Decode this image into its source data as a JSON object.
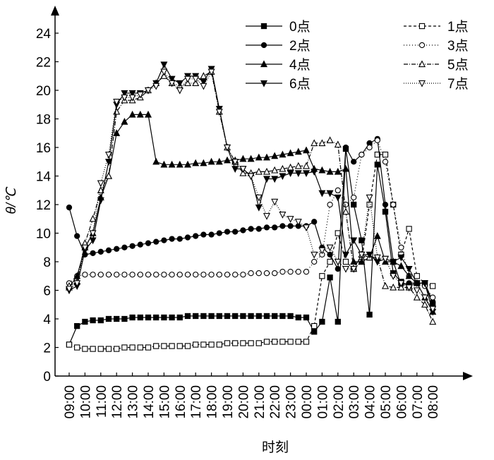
{
  "chart_data": {
    "type": "line",
    "y_label": "θ/℃",
    "x_label": "时刻",
    "categories": [
      "09:00",
      null,
      "10:00",
      null,
      "11:00",
      null,
      "12:00",
      null,
      "13:00",
      null,
      "14:00",
      null,
      "15:00",
      null,
      "16:00",
      null,
      "17:00",
      null,
      "18:00",
      null,
      "19:00",
      null,
      "20:00",
      null,
      "21:00",
      null,
      "22:00",
      null,
      "23:00",
      null,
      "00:00",
      null,
      "01:00",
      null,
      "02:00",
      null,
      "03:00",
      null,
      "04:00",
      null,
      "05:00",
      null,
      "06:00",
      null,
      "07:00",
      null,
      "08:00"
    ],
    "ylim": [
      0,
      24
    ],
    "yticks": [
      0,
      2,
      4,
      6,
      8,
      10,
      12,
      14,
      16,
      18,
      20,
      22,
      24
    ],
    "series": [
      {
        "name": "0点",
        "color": "#000000",
        "marker": "square",
        "filled": true,
        "dash": "none",
        "values": [
          2.2,
          3.5,
          3.8,
          3.9,
          3.9,
          4.0,
          4.0,
          4.0,
          4.1,
          4.1,
          4.1,
          4.1,
          4.1,
          4.1,
          4.1,
          4.2,
          4.2,
          4.2,
          4.2,
          4.2,
          4.2,
          4.2,
          4.2,
          4.2,
          4.2,
          4.2,
          4.2,
          4.2,
          4.2,
          4.1,
          4.1,
          3.1,
          3.8,
          6.9,
          3.8,
          15.9,
          12,
          9.5,
          4.3,
          14.8,
          11.5,
          7.2,
          6.6,
          6.3,
          6.5,
          6.5,
          5.0
        ]
      },
      {
        "name": "1点",
        "color": "#000000",
        "marker": "square",
        "filled": false,
        "dash": "4 3",
        "values": [
          2.2,
          2.0,
          1.9,
          1.9,
          1.9,
          1.9,
          1.9,
          2.0,
          2.0,
          2.0,
          2.0,
          2.1,
          2.1,
          2.1,
          2.1,
          2.1,
          2.2,
          2.2,
          2.2,
          2.2,
          2.3,
          2.3,
          2.3,
          2.3,
          2.3,
          2.4,
          2.4,
          2.4,
          2.4,
          2.4,
          2.4,
          3.5,
          7.0,
          8.0,
          10.0,
          8.0,
          7.5,
          8.0,
          12.0,
          15.5,
          15.5,
          12.0,
          8.5,
          10.3,
          7.0,
          6.5,
          6.3
        ]
      },
      {
        "name": "2点",
        "color": "#000000",
        "marker": "circle",
        "filled": true,
        "dash": "none",
        "values": [
          11.8,
          9.8,
          8.5,
          8.6,
          8.7,
          8.8,
          8.9,
          9.0,
          9.1,
          9.2,
          9.3,
          9.4,
          9.5,
          9.6,
          9.6,
          9.7,
          9.8,
          9.9,
          9.9,
          10.0,
          10.1,
          10.1,
          10.2,
          10.3,
          10.3,
          10.4,
          10.4,
          10.5,
          10.5,
          10.5,
          10.5,
          10.8,
          9.0,
          8.5,
          7.5,
          16.0,
          15.0,
          15.5,
          16.3,
          16.6,
          12.0,
          8.0,
          6.4,
          6.5,
          6.5,
          6.5,
          5.2
        ]
      },
      {
        "name": "3点",
        "color": "#000000",
        "marker": "circle",
        "filled": false,
        "dash": "1 3",
        "values": [
          6.5,
          7.0,
          7.1,
          7.1,
          7.1,
          7.1,
          7.1,
          7.1,
          7.1,
          7.1,
          7.1,
          7.1,
          7.1,
          7.1,
          7.1,
          7.1,
          7.1,
          7.1,
          7.1,
          7.1,
          7.1,
          7.1,
          7.1,
          7.2,
          7.2,
          7.2,
          7.2,
          7.3,
          7.3,
          7.3,
          7.3,
          8.0,
          8.5,
          12.0,
          13.0,
          12.0,
          12.5,
          15.5,
          16.0,
          16.5,
          15.0,
          12.0,
          9.0,
          7.0,
          6.5,
          6.3,
          5.5
        ]
      },
      {
        "name": "4点",
        "color": "#000000",
        "marker": "triangle",
        "filled": true,
        "dash": "none",
        "values": [
          6.2,
          7.0,
          9.0,
          10.0,
          12.5,
          14.0,
          17.0,
          17.8,
          18.3,
          18.3,
          18.3,
          15.0,
          14.8,
          14.8,
          14.8,
          14.8,
          14.9,
          14.9,
          15.0,
          15.0,
          15.1,
          15.1,
          15.2,
          15.2,
          15.3,
          15.3,
          15.4,
          15.5,
          15.6,
          15.7,
          15.8,
          14.5,
          14.4,
          14.3,
          14.3,
          14.5,
          8.0,
          8.0,
          8.3,
          9.8,
          8.0,
          8.0,
          7.7,
          7.0,
          6.5,
          5.5,
          4.5
        ]
      },
      {
        "name": "5点",
        "color": "#000000",
        "marker": "triangle",
        "filled": false,
        "dash": "6 2 1 2",
        "values": [
          6.3,
          6.6,
          9.3,
          11.0,
          13.0,
          14.0,
          18.5,
          19.3,
          19.3,
          19.5,
          20.0,
          20.5,
          21.0,
          20.5,
          20.3,
          20.5,
          20.5,
          21.0,
          21.3,
          18.5,
          16.0,
          15.0,
          14.2,
          14.2,
          14.3,
          14.3,
          14.4,
          14.5,
          14.6,
          14.7,
          14.7,
          16.3,
          16.3,
          16.5,
          16.2,
          11.5,
          7.5,
          8.5,
          8.3,
          8.3,
          6.3,
          6.2,
          6.2,
          6.2,
          5.5,
          5.0,
          3.8
        ]
      },
      {
        "name": "6点",
        "color": "#000000",
        "marker": "triangle-down",
        "filled": true,
        "dash": "none",
        "values": [
          6.0,
          6.3,
          8.8,
          9.5,
          12.3,
          15.0,
          19.0,
          19.8,
          19.8,
          19.8,
          20.0,
          20.5,
          21.8,
          20.8,
          20.5,
          21.0,
          21.0,
          20.6,
          21.5,
          18.7,
          16.0,
          14.5,
          14.5,
          14.0,
          11.8,
          13.8,
          13.8,
          14.0,
          14.2,
          14.2,
          14.2,
          14.3,
          12.8,
          12.8,
          12.5,
          8.5,
          9.5,
          8.5,
          8.5,
          8.0,
          8.2,
          8.0,
          8.3,
          7.5,
          6.5,
          6.5,
          4.5
        ]
      },
      {
        "name": "7点",
        "color": "#000000",
        "marker": "triangle-down",
        "filled": false,
        "dash": "1 2",
        "values": [
          6.1,
          6.5,
          9.0,
          10.0,
          13.5,
          15.5,
          19.2,
          19.5,
          19.5,
          19.7,
          20.0,
          20.3,
          21.3,
          20.5,
          20.0,
          20.8,
          20.8,
          20.3,
          21.3,
          18.5,
          16.0,
          15.0,
          14.5,
          14.0,
          12.5,
          11.2,
          12.2,
          11.3,
          11.0,
          10.8,
          10.4,
          8.5,
          8.8,
          9.0,
          8.0,
          7.5,
          7.5,
          8.5,
          12.5,
          8.3,
          8.2,
          7.0,
          6.5,
          6.2,
          6.0,
          5.5,
          4.7
        ]
      }
    ]
  }
}
